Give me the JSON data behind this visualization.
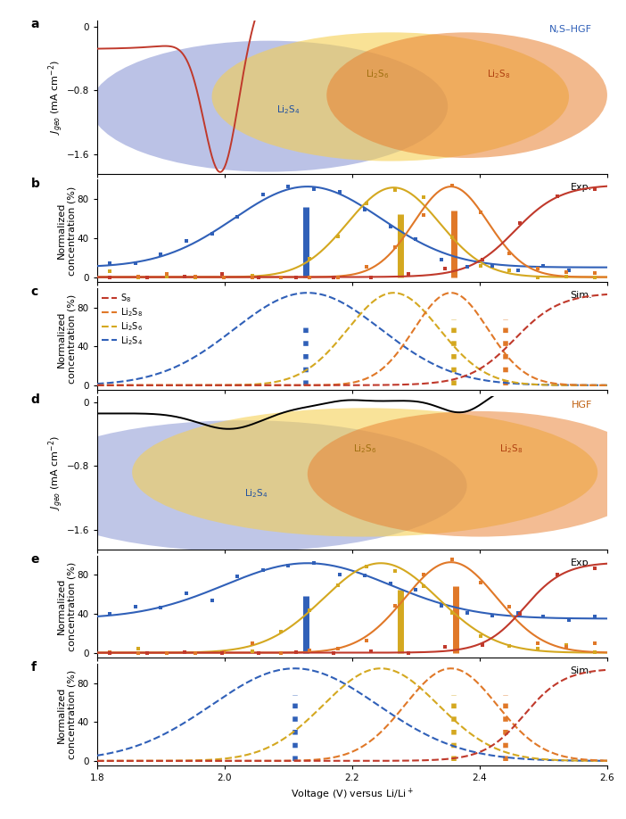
{
  "colors": {
    "S8": "#c0392b",
    "Li2S8": "#e07828",
    "Li2S6": "#d4a820",
    "Li2S4": "#3060b8",
    "ellipse_yellow": "#f0c840",
    "ellipse_orange": "#e08030",
    "ellipse_blue": "#6888c8"
  },
  "xlim": [
    1.8,
    2.6
  ],
  "panel_a": {
    "label": "a",
    "ylabel": "$J_{geo}$ (mA cm$^{-2}$)",
    "ylim": [
      -1.85,
      0.05
    ],
    "yticks": [
      -1.6,
      -0.8,
      0
    ],
    "tag": "N,S–HGF",
    "tag_color": "#3060b8"
  },
  "panel_b": {
    "label": "b",
    "ylabel": "Normalized\nconcentration (%)",
    "ylim": [
      -5,
      100
    ],
    "yticks": [
      0,
      40,
      80
    ],
    "tag": "Exp."
  },
  "panel_c": {
    "label": "c",
    "ylabel": "Normalized\nconcentration (%)",
    "ylim": [
      -5,
      100
    ],
    "yticks": [
      0,
      40,
      80
    ],
    "tag": "Sim."
  },
  "panel_d": {
    "label": "d",
    "ylabel": "$J_{geo}$ (mA cm$^{-2}$)",
    "ylim": [
      -1.85,
      0.05
    ],
    "yticks": [
      -1.6,
      -0.8,
      0
    ],
    "tag": "HGF",
    "tag_color": "#c06010"
  },
  "panel_e": {
    "label": "e",
    "ylabel": "Normalized\nconcentration (%)",
    "ylim": [
      -5,
      100
    ],
    "yticks": [
      0,
      40,
      80
    ],
    "tag": "Exp."
  },
  "panel_f": {
    "label": "f",
    "ylabel": "Normalized\nconcentration (%)",
    "ylim": [
      -5,
      100
    ],
    "yticks": [
      0,
      40,
      80
    ],
    "tag": "Sim."
  },
  "xlabel": "Voltage (V) versus Li/Li$^+$",
  "xticks": [
    1.8,
    2.0,
    2.2,
    2.4,
    2.6
  ]
}
